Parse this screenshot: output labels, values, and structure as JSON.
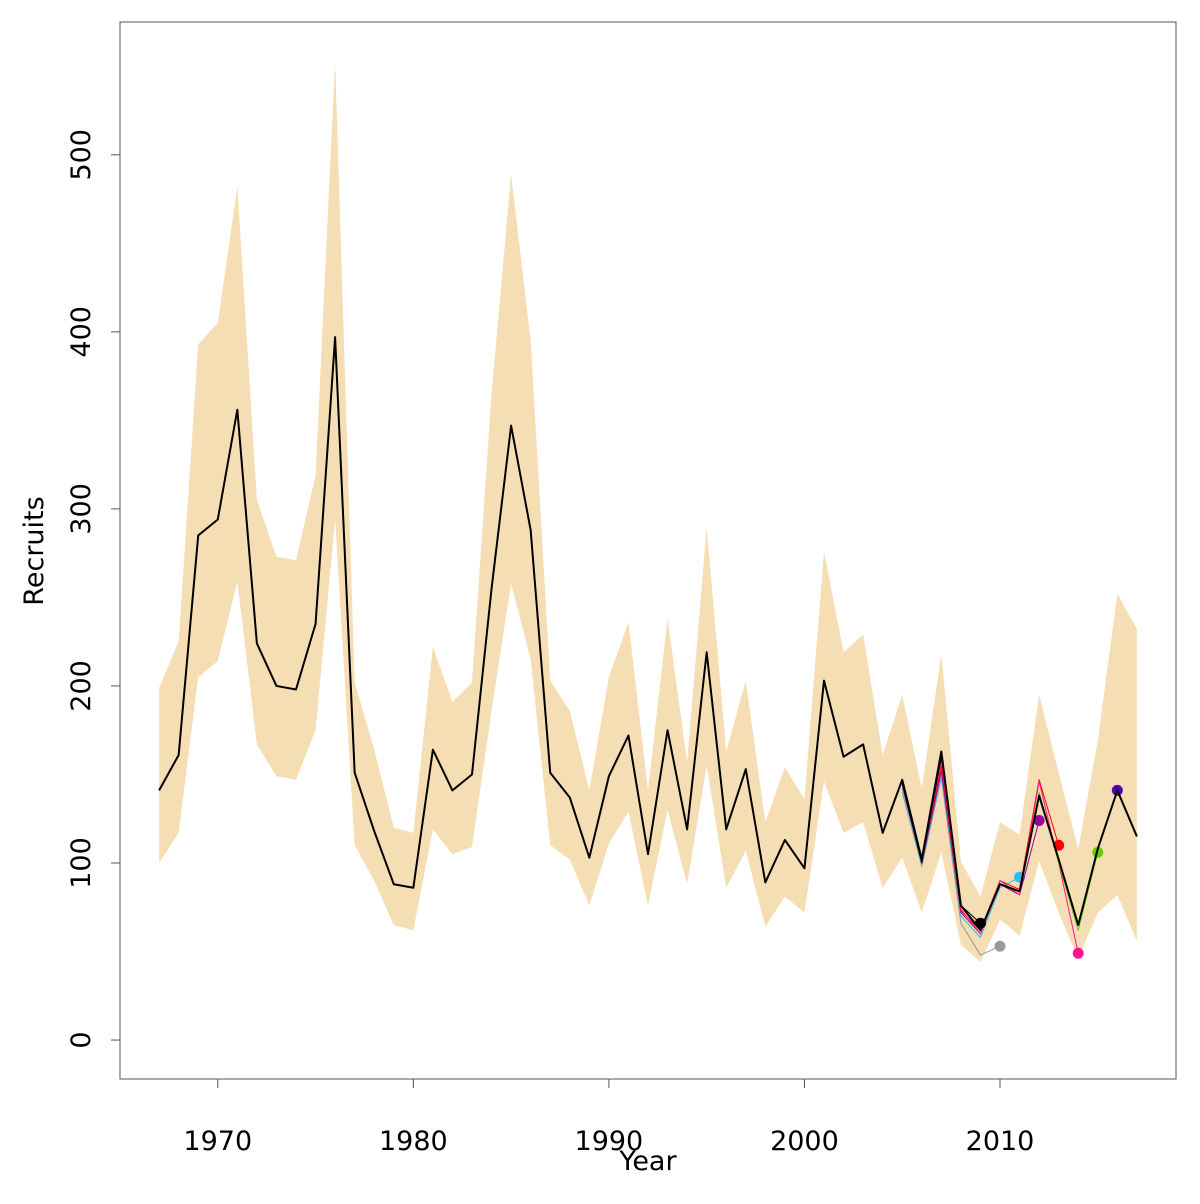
{
  "chart_data": {
    "type": "line",
    "x_label": "Year",
    "y_label": "Recruits",
    "xlim": [
      1965,
      2019
    ],
    "ylim": [
      -22,
      575
    ],
    "xticks": [
      1970,
      1980,
      1990,
      2000,
      2010
    ],
    "yticks": [
      0,
      100,
      200,
      300,
      400,
      500
    ],
    "x": [
      1967,
      1968,
      1969,
      1970,
      1971,
      1972,
      1973,
      1974,
      1975,
      1976,
      1977,
      1978,
      1979,
      1980,
      1981,
      1982,
      1983,
      1984,
      1985,
      1986,
      1987,
      1988,
      1989,
      1990,
      1991,
      1992,
      1993,
      1994,
      1995,
      1996,
      1997,
      1998,
      1999,
      2000,
      2001,
      2002,
      2003,
      2004,
      2005,
      2006,
      2007,
      2008,
      2009,
      2010,
      2011,
      2012,
      2013,
      2014,
      2015,
      2016,
      2017
    ],
    "band": {
      "color": "#f5deb3",
      "upper": [
        199,
        225,
        393,
        405,
        482,
        305,
        273,
        271,
        319,
        553,
        202,
        164,
        120,
        117,
        222,
        191,
        202,
        365,
        489,
        395,
        203,
        186,
        141,
        205,
        236,
        141,
        238,
        157,
        290,
        163,
        203,
        123,
        154,
        136,
        276,
        219,
        229,
        161,
        195,
        142,
        218,
        101,
        81,
        123,
        116,
        195,
        151,
        108,
        169,
        252,
        232
      ],
      "lower": [
        100,
        117,
        205,
        214,
        259,
        167,
        149,
        147,
        175,
        294,
        110,
        90,
        65,
        62,
        119,
        105,
        109,
        186,
        258,
        215,
        110,
        102,
        76,
        111,
        129,
        76,
        130,
        88,
        155,
        86,
        107,
        64,
        81,
        72,
        146,
        117,
        123,
        86,
        103,
        72,
        106,
        54,
        44,
        68,
        59,
        101,
        72,
        46,
        72,
        82,
        56
      ]
    },
    "series": [
      {
        "color": "#999999",
        "marker": "last",
        "x": [
          2005,
          2006,
          2007,
          2008,
          2009,
          2010
        ],
        "values": [
          140,
          98,
          148,
          66,
          48,
          53
        ]
      },
      {
        "color": "#33bbee",
        "marker": "last",
        "x": [
          2005,
          2006,
          2007,
          2008,
          2009,
          2010,
          2011
        ],
        "values": [
          142,
          99,
          150,
          70,
          58,
          86,
          92
        ]
      },
      {
        "color": "#990099",
        "marker": "last",
        "x": [
          2005,
          2006,
          2007,
          2008,
          2009,
          2010,
          2011,
          2012
        ],
        "values": [
          144,
          100,
          152,
          72,
          60,
          88,
          82,
          124
        ]
      },
      {
        "color": "#ff0000",
        "marker": "last",
        "x": [
          2005,
          2006,
          2007,
          2008,
          2009,
          2010,
          2011,
          2012,
          2013
        ],
        "values": [
          146,
          101,
          155,
          73,
          62,
          90,
          85,
          147,
          110
        ]
      },
      {
        "color": "#ff1493",
        "marker": "last",
        "x": [
          2005,
          2006,
          2007,
          2008,
          2009,
          2010,
          2011,
          2012,
          2013,
          2014
        ],
        "values": [
          145,
          100,
          158,
          74,
          60,
          90,
          82,
          146,
          100,
          49
        ]
      },
      {
        "color": "#66cc00",
        "marker": "last",
        "x": [
          2005,
          2006,
          2007,
          2008,
          2009,
          2010,
          2011,
          2012,
          2013,
          2014,
          2015
        ],
        "values": [
          147,
          102,
          163,
          76,
          62,
          88,
          84,
          140,
          100,
          62,
          106
        ]
      },
      {
        "color": "#5500aa",
        "marker": "last",
        "x": [
          2005,
          2006,
          2007,
          2008,
          2009,
          2010,
          2011,
          2012,
          2013,
          2014,
          2015,
          2016
        ],
        "values": [
          147,
          102,
          163,
          76,
          62,
          88,
          84,
          138,
          102,
          65,
          108,
          141
        ]
      },
      {
        "color": "#000000",
        "marker": "last",
        "x": [
          2005,
          2006,
          2007,
          2008,
          2009
        ],
        "values": [
          145,
          100,
          160,
          76,
          66
        ]
      },
      {
        "color": "#000000",
        "width": 2,
        "values": [
          141,
          161,
          285,
          294,
          356,
          224,
          200,
          198,
          235,
          397,
          151,
          118,
          88,
          86,
          164,
          141,
          150,
          255,
          347,
          288,
          151,
          137,
          103,
          149,
          172,
          105,
          175,
          119,
          219,
          119,
          153,
          89,
          113,
          97,
          203,
          160,
          167,
          117,
          147,
          102,
          163,
          76,
          62,
          88,
          84,
          138,
          102,
          65,
          108,
          141,
          115
        ]
      }
    ]
  }
}
